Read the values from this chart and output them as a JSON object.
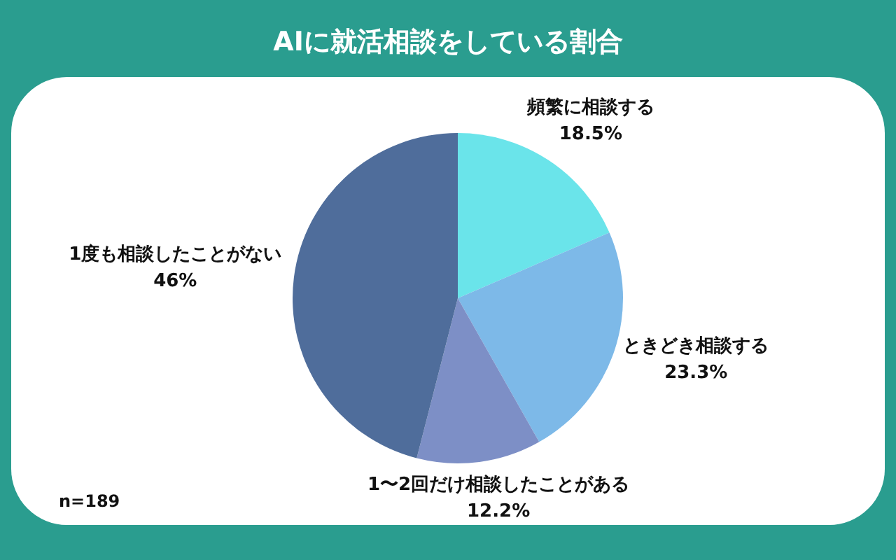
{
  "chart_data": {
    "type": "pie",
    "title": "AIに就活相談をしている割合",
    "categories": [
      "頻繁に相談する",
      "ときどき相談する",
      "1〜2回だけ相談したことがある",
      "1度も相談したことがない"
    ],
    "values": [
      18.5,
      23.3,
      12.2,
      46
    ],
    "colors": [
      "#6ae4ea",
      "#7db9e8",
      "#7d8fc6",
      "#4f6d9b"
    ],
    "value_labels": [
      "18.5%",
      "23.3%",
      "12.2%",
      "46%"
    ],
    "annotations": [
      "n=189"
    ]
  }
}
